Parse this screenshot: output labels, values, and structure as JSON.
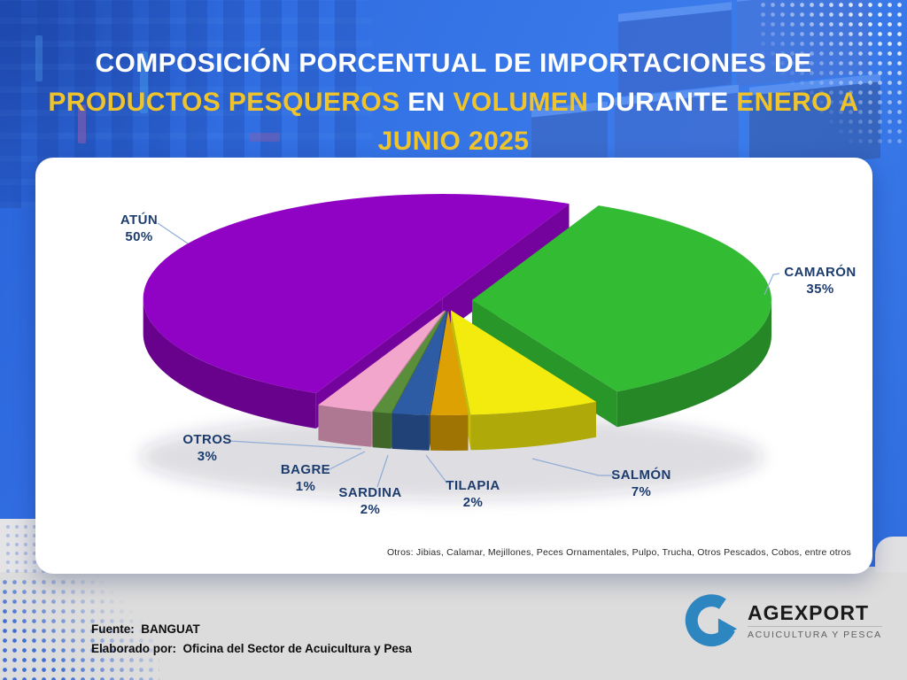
{
  "title": {
    "segments": [
      {
        "text": "COMPOSICIÓN PORCENTUAL DE IMPORTACIONES DE ",
        "color": "white"
      },
      {
        "text": "PRODUCTOS PESQUEROS",
        "color": "yellow"
      },
      {
        "text": " EN ",
        "color": "white"
      },
      {
        "text": "VOLUMEN",
        "color": "yellow"
      },
      {
        "text": " DURANTE ",
        "color": "white"
      },
      {
        "text": "ENERO A JUNIO 2025",
        "color": "yellow"
      }
    ]
  },
  "chart_data": {
    "type": "pie",
    "style": "3d-exploded",
    "unit": "%",
    "slices": [
      {
        "label": "CAMARÓN",
        "value": 35,
        "color": "#33bb33"
      },
      {
        "label": "SALMÓN",
        "value": 7,
        "color": "#f3eb0e"
      },
      {
        "label": "TILAPIA",
        "value": 2,
        "color": "#dda104"
      },
      {
        "label": "SARDINA",
        "value": 2,
        "color": "#2e5ca4"
      },
      {
        "label": "BAGRE",
        "value": 1,
        "color": "#5a8e3a"
      },
      {
        "label": "OTROS",
        "value": 3,
        "color": "#f3a6cb"
      },
      {
        "label": "ATÚN",
        "value": 50,
        "color": "#9103c4"
      }
    ],
    "exploded_slice": "CAMARÓN",
    "rotation_deg": 25,
    "legend_position": "callout-labels",
    "footnote": "Otros: Jibias, Calamar, Mejillones, Peces Ornamentales, Pulpo, Trucha, Otros Pescados, Cobos, entre otros"
  },
  "footer": {
    "source_label": "Fuente:",
    "source_value": "BANGUAT",
    "elaborated_label": "Elaborado por:",
    "elaborated_value": "Oficina del Sector de Acuicultura y Pesa",
    "logo_name": "AGEXPORT",
    "logo_subtitle": "ACUICULTURA Y PESCA"
  },
  "colors": {
    "title_yellow": "#efc32c",
    "title_white": "#ffffff",
    "label_navy": "#1d3c6e",
    "leader_line": "#8fadd6",
    "logo_blue": "#2e86c1",
    "background_blue": "#3574e6",
    "footer_gray": "#dcdcdc"
  }
}
